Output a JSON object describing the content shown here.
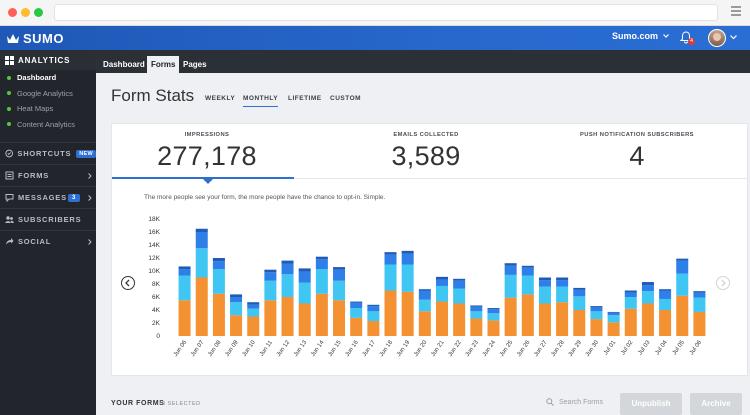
{
  "app": {
    "brand": "SUMO",
    "site": "Sumo.com",
    "notifications": "4"
  },
  "sidebar": {
    "analytics": {
      "label": "ANALYTICS",
      "items": [
        "Dashboard",
        "Google Analytics",
        "Heat Maps",
        "Content Analytics"
      ]
    },
    "sections": [
      {
        "label": "SHORTCUTS",
        "badge": "NEW"
      },
      {
        "label": "FORMS"
      },
      {
        "label": "MESSAGES",
        "count": "3"
      },
      {
        "label": "SUBSCRIBERS"
      },
      {
        "label": "SOCIAL"
      }
    ]
  },
  "subnav": {
    "tabs": [
      "Dashboard",
      "Forms",
      "Pages"
    ],
    "active": "Forms"
  },
  "page": {
    "title": "Form Stats",
    "ranges": [
      "WEEKLY",
      "MONTHLY",
      "LIFETIME",
      "CUSTOM"
    ],
    "active_range": "MONTHLY"
  },
  "stats": [
    {
      "label": "IMPRESSIONS",
      "value": "277,178"
    },
    {
      "label": "EMAILS COLLECTED",
      "value": "3,589"
    },
    {
      "label": "PUSH NOTIFICATION SUBSCRIBERS",
      "value": "4"
    }
  ],
  "chart_desc": "The more people see your form, the more people have the chance to opt-in. Simple.",
  "colors": {
    "orange": "#f39133",
    "cyan": "#3fc6f3",
    "blue": "#2f7fe8",
    "navy": "#1f5bb7",
    "accent": "#2d6fd3"
  },
  "chart_data": {
    "type": "bar",
    "stacked": true,
    "categories": [
      "Jun 06",
      "Jun 07",
      "Jun 08",
      "Jun 09",
      "Jun 10",
      "Jun 11",
      "Jun 12",
      "Jun 13",
      "Jun 14",
      "Jun 15",
      "Jun 16",
      "Jun 17",
      "Jun 18",
      "Jun 19",
      "Jun 20",
      "Jun 21",
      "Jun 22",
      "Jun 23",
      "Jun 24",
      "Jun 25",
      "Jun 26",
      "Jun 27",
      "Jun 28",
      "Jun 29",
      "Jun 30",
      "Jul 01",
      "Jul 02",
      "Jul 03",
      "Jul 04",
      "Jul 05",
      "Jul 06"
    ],
    "yticks": [
      "0",
      "2K",
      "4K",
      "6K",
      "8K",
      "10K",
      "12K",
      "14K",
      "16K",
      "18K"
    ],
    "ylim": [
      0,
      18000
    ],
    "series": [
      {
        "values": [
          5500,
          9000,
          6500,
          3200,
          3000,
          5500,
          6000,
          5000,
          6500,
          5500,
          2800,
          2300,
          7000,
          6800,
          3800,
          5300,
          5000,
          2700,
          2400,
          5900,
          6400,
          5000,
          5200,
          4000,
          2600,
          2100,
          4200,
          5000,
          4000,
          6200,
          3700
        ]
      },
      {
        "values": [
          3800,
          4500,
          3800,
          2000,
          1200,
          3000,
          3500,
          3200,
          3800,
          3000,
          1500,
          1500,
          4000,
          4200,
          1800,
          2400,
          2300,
          1100,
          1100,
          3500,
          2900,
          2600,
          2400,
          2100,
          1200,
          1100,
          1800,
          1900,
          1700,
          3400,
          2200
        ]
      },
      {
        "values": [
          1000,
          2500,
          1200,
          800,
          600,
          1300,
          1600,
          1700,
          1500,
          1700,
          800,
          800,
          1500,
          1700,
          1400,
          1000,
          1200,
          700,
          600,
          1400,
          1200,
          1000,
          1000,
          1000,
          600,
          400,
          700,
          900,
          1300,
          2000,
          800
        ]
      },
      {
        "values": [
          400,
          500,
          500,
          400,
          400,
          400,
          500,
          500,
          400,
          400,
          200,
          200,
          400,
          400,
          200,
          400,
          300,
          200,
          200,
          400,
          300,
          400,
          400,
          300,
          200,
          100,
          300,
          500,
          200,
          300,
          200
        ]
      }
    ]
  },
  "forms_bar": {
    "label": "YOUR FORMS",
    "selected": "0 SELECTED",
    "search_placeholder": "Search Forms",
    "unpublish": "Unpublish",
    "archive": "Archive"
  }
}
